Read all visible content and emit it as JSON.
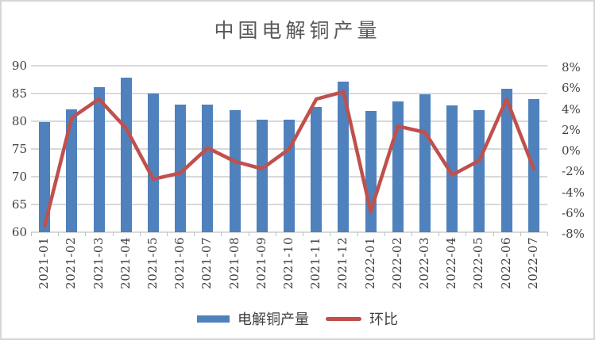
{
  "colors": {
    "bar": "#4F81BD",
    "line": "#C0504D",
    "grid": "#D9D9D9",
    "axis_text": "#404040",
    "title_text": "#595959",
    "tick_mark": "#BFBFBF"
  },
  "chart_data": {
    "type": "combo-bar-line",
    "title": "中国电解铜产量",
    "categories": [
      "2021-01",
      "2021-02",
      "2021-03",
      "2021-04",
      "2021-05",
      "2021-06",
      "2021-07",
      "2021-08",
      "2021-09",
      "2021-10",
      "2021-11",
      "2021-12",
      "2022-01",
      "2022-02",
      "2022-03",
      "2022-04",
      "2022-05",
      "2022-06",
      "2022-07"
    ],
    "series": [
      {
        "name": "电解铜产量",
        "type": "bar",
        "axis": "left",
        "color": "#4F81BD",
        "values": [
          79.9,
          82.1,
          86.1,
          87.9,
          85.0,
          83.0,
          83.0,
          82.0,
          80.3,
          80.3,
          82.6,
          87.2,
          81.9,
          83.6,
          84.9,
          82.8,
          82.0,
          85.8,
          84.0
        ]
      },
      {
        "name": "环比",
        "type": "line",
        "axis": "right",
        "color": "#C0504D",
        "unit": "%",
        "values": [
          -7.4,
          3.0,
          4.8,
          2.0,
          -2.9,
          -2.3,
          0.1,
          -1.2,
          -1.9,
          0.0,
          4.8,
          5.5,
          -6.0,
          2.2,
          1.6,
          -2.5,
          -1.1,
          4.8,
          -1.9
        ]
      }
    ],
    "left_axis": {
      "min": 60,
      "max": 90,
      "tick_labels": [
        "90",
        "85",
        "80",
        "75",
        "70",
        "65",
        "60"
      ],
      "tick_values": [
        90,
        85,
        80,
        75,
        70,
        65,
        60
      ]
    },
    "right_axis": {
      "min": -8,
      "max": 8,
      "tick_labels": [
        "8%",
        "6%",
        "4%",
        "2%",
        "0%",
        "-2%",
        "-4%",
        "-6%",
        "-8%"
      ],
      "tick_values": [
        8,
        6,
        4,
        2,
        0,
        -2,
        -4,
        -6,
        -8
      ]
    },
    "grid": true,
    "legend_position": "bottom"
  },
  "legend": {
    "bar_label": "电解铜产量",
    "line_label": "环比"
  }
}
